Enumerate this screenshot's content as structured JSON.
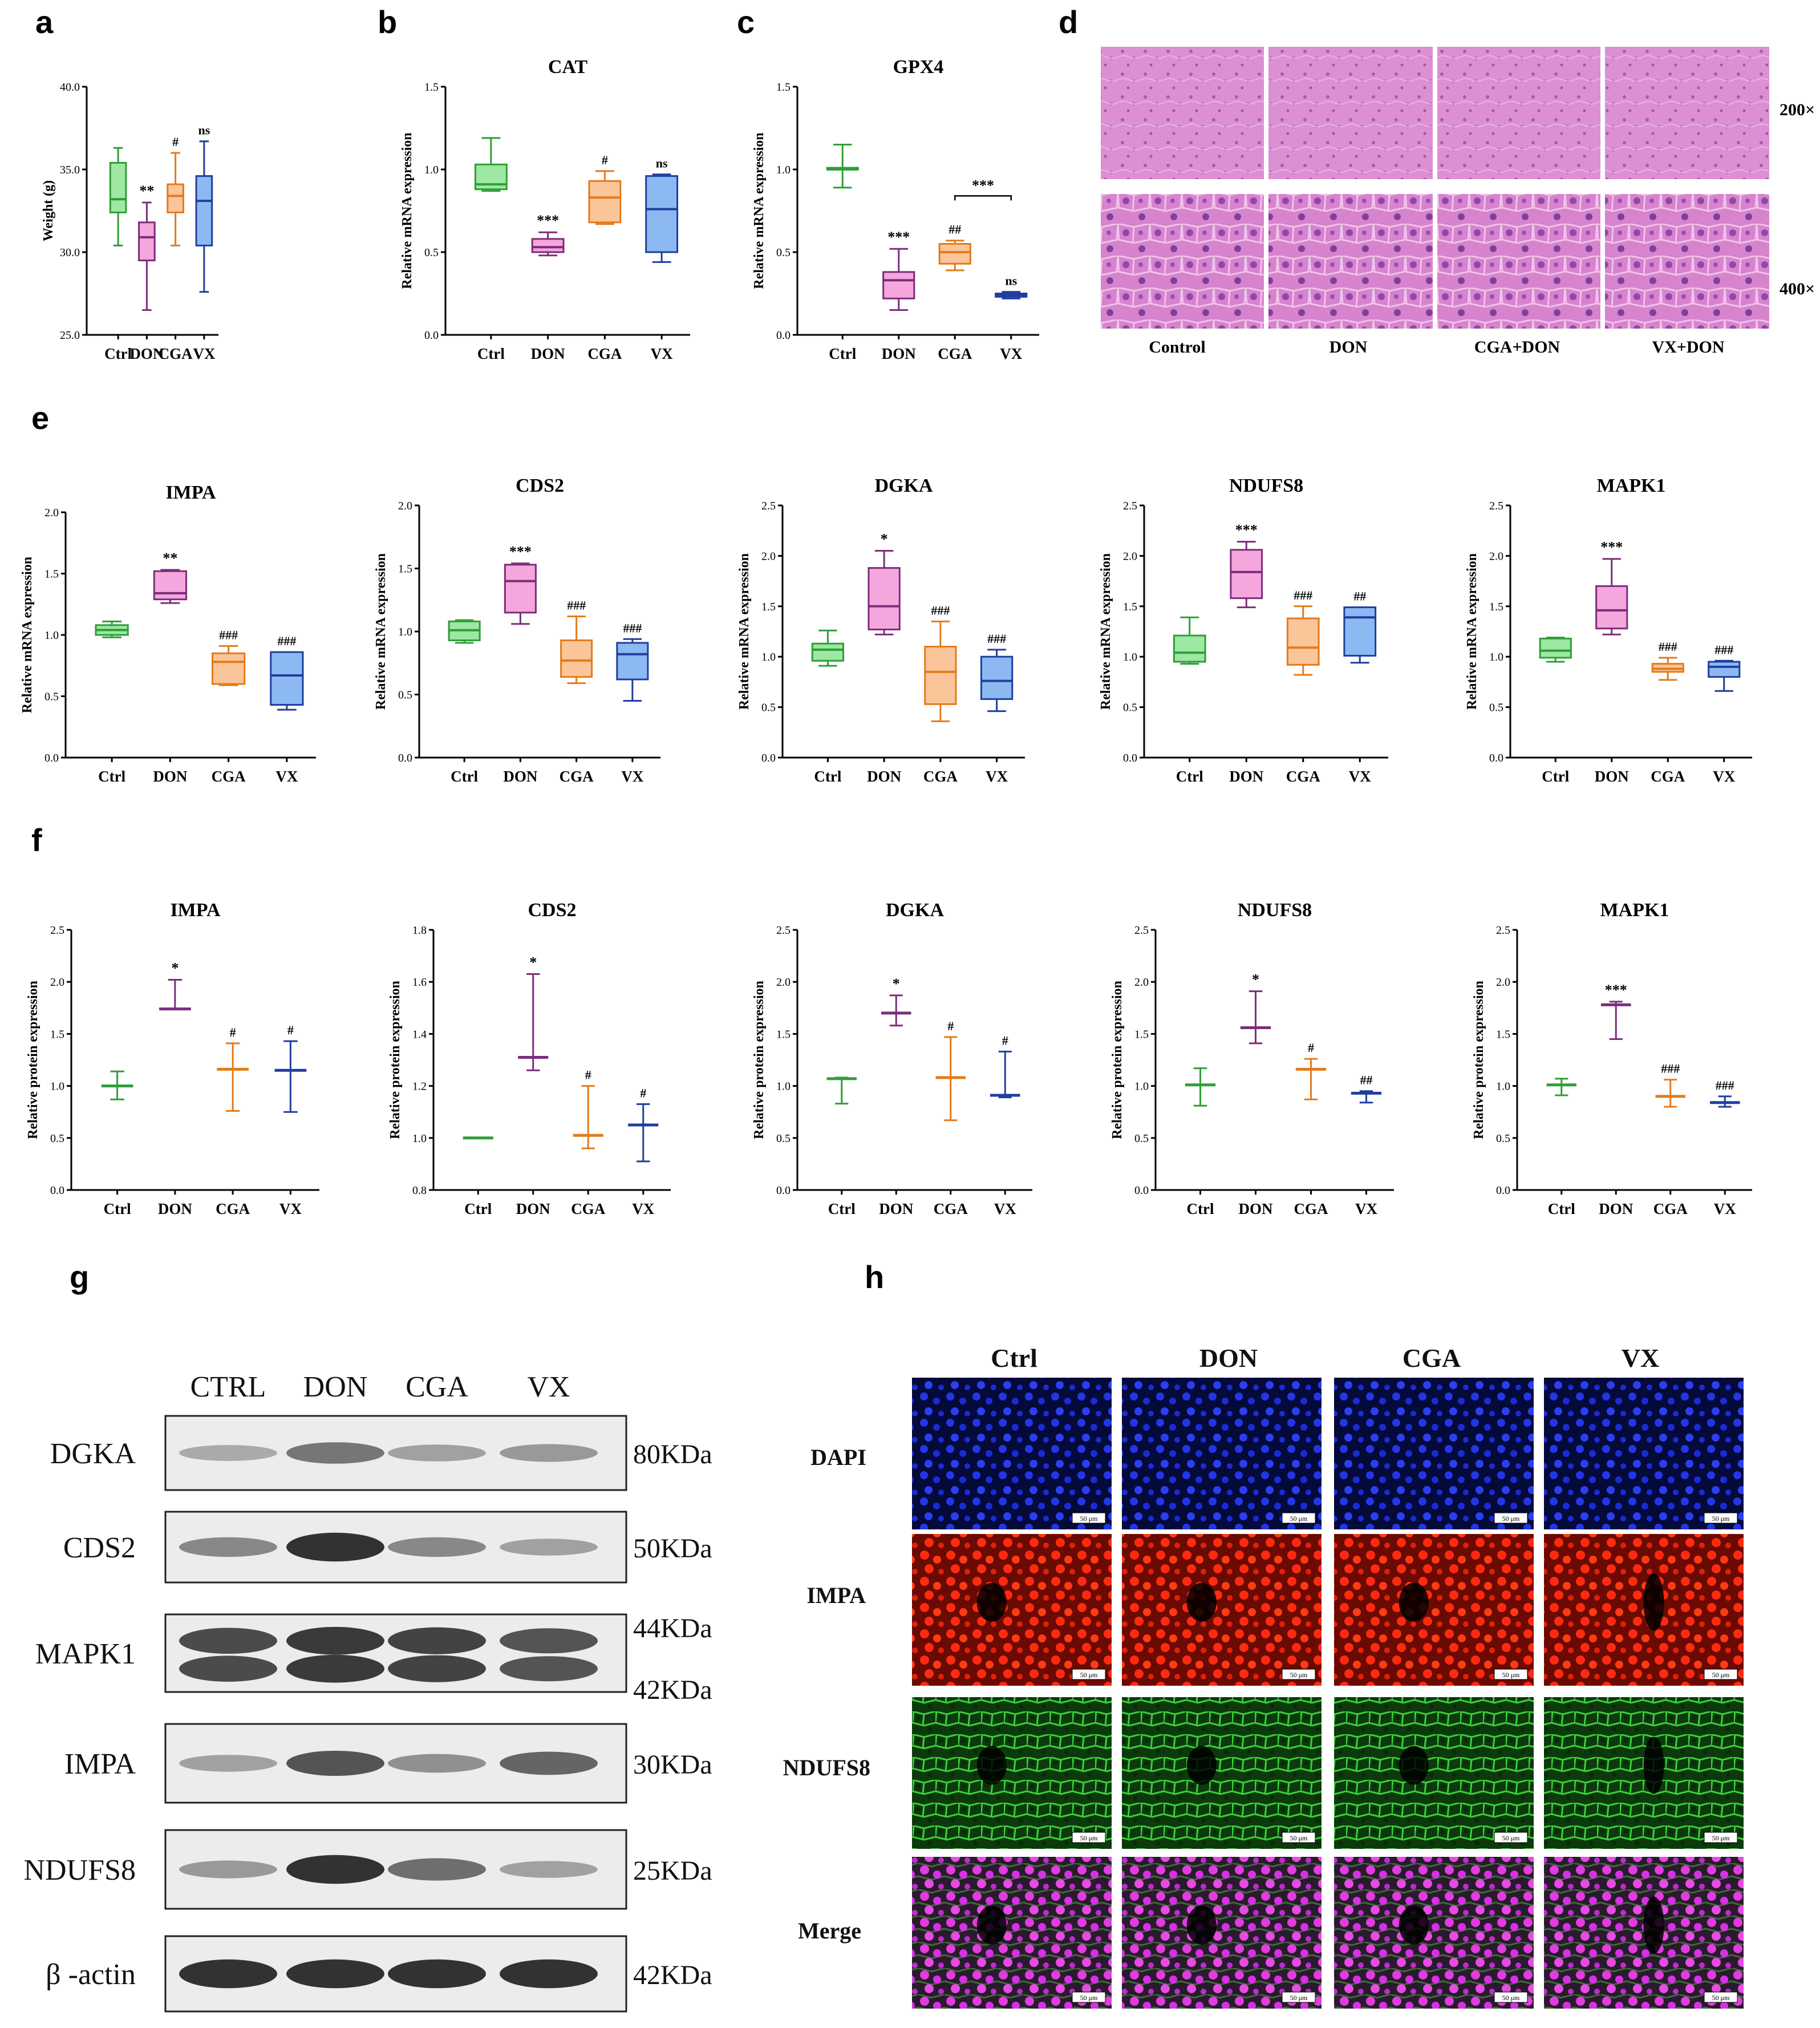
{
  "colors": {
    "Ctrl": {
      "stroke": "#2e9e37",
      "fill": "#9de8a2"
    },
    "DON": {
      "stroke": "#7b2d7a",
      "fill": "#f4a6dd"
    },
    "CGA": {
      "stroke": "#e37b1a",
      "fill": "#fbc59a"
    },
    "VX": {
      "stroke": "#1f3f9e",
      "fill": "#8db9f2"
    }
  },
  "panel_labels": {
    "a": "a",
    "b": "b",
    "c": "c",
    "d": "d",
    "e": "e",
    "f": "f",
    "g": "g",
    "h": "h"
  },
  "chart_data": [
    {
      "id": "a",
      "type": "box",
      "title": "",
      "ylabel": "Weight (g)",
      "ylim": [
        25,
        40
      ],
      "yticks": [
        25,
        30,
        35,
        40
      ],
      "categories": [
        "Ctrl",
        "DON",
        "CGA",
        "VX"
      ],
      "boxes": [
        {
          "min": 30.4,
          "q1": 32.4,
          "median": 33.2,
          "q3": 35.4,
          "max": 36.3,
          "sig": ""
        },
        {
          "min": 26.5,
          "q1": 29.5,
          "median": 30.9,
          "q3": 31.8,
          "max": 33.0,
          "sig": "**"
        },
        {
          "min": 30.4,
          "q1": 32.4,
          "median": 33.4,
          "q3": 34.1,
          "max": 36.0,
          "sig": "#"
        },
        {
          "min": 27.6,
          "q1": 30.4,
          "median": 33.1,
          "q3": 34.6,
          "max": 36.7,
          "sig": "ns"
        }
      ]
    },
    {
      "id": "b",
      "type": "box",
      "title": "CAT",
      "ylabel": "Relative mRNA expression",
      "ylim": [
        0,
        1.5
      ],
      "yticks": [
        0.0,
        0.5,
        1.0,
        1.5
      ],
      "categories": [
        "Ctrl",
        "DON",
        "CGA",
        "VX"
      ],
      "boxes": [
        {
          "min": 0.87,
          "q1": 0.88,
          "median": 0.91,
          "q3": 1.03,
          "max": 1.19,
          "sig": ""
        },
        {
          "min": 0.48,
          "q1": 0.5,
          "median": 0.53,
          "q3": 0.58,
          "max": 0.62,
          "sig": "***"
        },
        {
          "min": 0.67,
          "q1": 0.68,
          "median": 0.83,
          "q3": 0.93,
          "max": 0.99,
          "sig": "#"
        },
        {
          "min": 0.44,
          "q1": 0.5,
          "median": 0.76,
          "q3": 0.96,
          "max": 0.97,
          "sig": "ns"
        }
      ]
    },
    {
      "id": "c",
      "type": "box",
      "title": "GPX4",
      "ylabel": "Relative mRNA expression",
      "ylim": [
        0,
        1.5
      ],
      "yticks": [
        0.0,
        0.5,
        1.0,
        1.5
      ],
      "categories": [
        "Ctrl",
        "DON",
        "CGA",
        "VX"
      ],
      "boxes": [
        {
          "min": 0.89,
          "q1": 1.0,
          "median": 1.0,
          "q3": 1.01,
          "max": 1.15,
          "sig": ""
        },
        {
          "min": 0.15,
          "q1": 0.22,
          "median": 0.33,
          "q3": 0.38,
          "max": 0.52,
          "sig": "***"
        },
        {
          "min": 0.39,
          "q1": 0.43,
          "median": 0.5,
          "q3": 0.55,
          "max": 0.57,
          "sig": "##"
        },
        {
          "min": 0.22,
          "q1": 0.23,
          "median": 0.24,
          "q3": 0.25,
          "max": 0.26,
          "sig": "ns"
        }
      ],
      "bracket": {
        "from": 2,
        "to": 3,
        "y": 0.84,
        "label": "***"
      }
    },
    {
      "id": "e1",
      "type": "box",
      "title": "IMPA",
      "ylabel": "Relative mRNA expression",
      "ylim": [
        0,
        2.0
      ],
      "yticks": [
        0.0,
        0.5,
        1.0,
        1.5,
        2.0
      ],
      "categories": [
        "Ctrl",
        "DON",
        "CGA",
        "VX"
      ],
      "boxes": [
        {
          "min": 0.98,
          "q1": 1.0,
          "median": 1.04,
          "q3": 1.08,
          "max": 1.11,
          "sig": ""
        },
        {
          "min": 1.26,
          "q1": 1.29,
          "median": 1.34,
          "q3": 1.52,
          "max": 1.53,
          "sig": "**"
        },
        {
          "min": 0.59,
          "q1": 0.6,
          "median": 0.78,
          "q3": 0.85,
          "max": 0.91,
          "sig": "###"
        },
        {
          "min": 0.39,
          "q1": 0.43,
          "median": 0.67,
          "q3": 0.86,
          "max": 0.86,
          "sig": "###"
        }
      ]
    },
    {
      "id": "e2",
      "type": "box",
      "title": "CDS2",
      "ylabel": "Relative mRNA expression",
      "ylim": [
        0,
        2.0
      ],
      "yticks": [
        0.0,
        0.5,
        1.0,
        1.5,
        2.0
      ],
      "categories": [
        "Ctrl",
        "DON",
        "CGA",
        "VX"
      ],
      "boxes": [
        {
          "min": 0.91,
          "q1": 0.93,
          "median": 1.01,
          "q3": 1.08,
          "max": 1.09,
          "sig": ""
        },
        {
          "min": 1.06,
          "q1": 1.15,
          "median": 1.4,
          "q3": 1.53,
          "max": 1.54,
          "sig": "***"
        },
        {
          "min": 0.59,
          "q1": 0.64,
          "median": 0.77,
          "q3": 0.93,
          "max": 1.12,
          "sig": "###"
        },
        {
          "min": 0.45,
          "q1": 0.62,
          "median": 0.82,
          "q3": 0.91,
          "max": 0.94,
          "sig": "###"
        }
      ]
    },
    {
      "id": "e3",
      "type": "box",
      "title": "DGKA",
      "ylabel": "Relative mRNA expression",
      "ylim": [
        0,
        2.5
      ],
      "yticks": [
        0.0,
        0.5,
        1.0,
        1.5,
        2.0,
        2.5
      ],
      "categories": [
        "Ctrl",
        "DON",
        "CGA",
        "VX"
      ],
      "boxes": [
        {
          "min": 0.91,
          "q1": 0.96,
          "median": 1.07,
          "q3": 1.13,
          "max": 1.26,
          "sig": ""
        },
        {
          "min": 1.22,
          "q1": 1.27,
          "median": 1.5,
          "q3": 1.88,
          "max": 2.05,
          "sig": "*"
        },
        {
          "min": 0.36,
          "q1": 0.53,
          "median": 0.85,
          "q3": 1.1,
          "max": 1.35,
          "sig": "###"
        },
        {
          "min": 0.46,
          "q1": 0.58,
          "median": 0.76,
          "q3": 1.0,
          "max": 1.07,
          "sig": "###"
        }
      ]
    },
    {
      "id": "e4",
      "type": "box",
      "title": "NDUFS8",
      "ylabel": "Relative mRNA expression",
      "ylim": [
        0,
        2.5
      ],
      "yticks": [
        0.0,
        0.5,
        1.0,
        1.5,
        2.0,
        2.5
      ],
      "categories": [
        "Ctrl",
        "DON",
        "CGA",
        "VX"
      ],
      "boxes": [
        {
          "min": 0.93,
          "q1": 0.95,
          "median": 1.04,
          "q3": 1.21,
          "max": 1.39,
          "sig": ""
        },
        {
          "min": 1.49,
          "q1": 1.58,
          "median": 1.84,
          "q3": 2.06,
          "max": 2.14,
          "sig": "***"
        },
        {
          "min": 0.82,
          "q1": 0.92,
          "median": 1.09,
          "q3": 1.38,
          "max": 1.5,
          "sig": "###"
        },
        {
          "min": 0.94,
          "q1": 1.01,
          "median": 1.39,
          "q3": 1.49,
          "max": 1.49,
          "sig": "##"
        }
      ]
    },
    {
      "id": "e5",
      "type": "box",
      "title": "MAPK1",
      "ylabel": "Relative mRNA expression",
      "ylim": [
        0,
        2.5
      ],
      "yticks": [
        0.0,
        0.5,
        1.0,
        1.5,
        2.0,
        2.5
      ],
      "categories": [
        "Ctrl",
        "DON",
        "CGA",
        "VX"
      ],
      "boxes": [
        {
          "min": 0.95,
          "q1": 0.99,
          "median": 1.06,
          "q3": 1.18,
          "max": 1.19,
          "sig": ""
        },
        {
          "min": 1.22,
          "q1": 1.28,
          "median": 1.46,
          "q3": 1.7,
          "max": 1.97,
          "sig": "***"
        },
        {
          "min": 0.77,
          "q1": 0.85,
          "median": 0.88,
          "q3": 0.93,
          "max": 0.99,
          "sig": "###"
        },
        {
          "min": 0.66,
          "q1": 0.8,
          "median": 0.9,
          "q3": 0.95,
          "max": 0.96,
          "sig": "###"
        }
      ]
    },
    {
      "id": "f1",
      "type": "errorbar",
      "title": "IMPA",
      "ylabel": "Relative protein expression",
      "ylim": [
        0,
        2.5
      ],
      "yticks": [
        0.0,
        0.5,
        1.0,
        1.5,
        2.0,
        2.5
      ],
      "categories": [
        "Ctrl",
        "DON",
        "CGA",
        "VX"
      ],
      "points": [
        {
          "mean": 1.0,
          "low": 0.87,
          "high": 1.14,
          "sig": ""
        },
        {
          "mean": 1.74,
          "low": 1.74,
          "high": 2.02,
          "sig": "*"
        },
        {
          "mean": 1.16,
          "low": 0.76,
          "high": 1.41,
          "sig": "#"
        },
        {
          "mean": 1.15,
          "low": 0.75,
          "high": 1.43,
          "sig": "#"
        }
      ]
    },
    {
      "id": "f2",
      "type": "errorbar",
      "title": "CDS2",
      "ylabel": "Relative protein expression",
      "ylim": [
        0.8,
        1.8
      ],
      "yticks": [
        0.8,
        1.0,
        1.2,
        1.4,
        1.6,
        1.8
      ],
      "categories": [
        "Ctrl",
        "DON",
        "CGA",
        "VX"
      ],
      "points": [
        {
          "mean": 1.0,
          "low": 1.0,
          "high": 1.0,
          "sig": ""
        },
        {
          "mean": 1.31,
          "low": 1.26,
          "high": 1.63,
          "sig": "*"
        },
        {
          "mean": 1.01,
          "low": 0.96,
          "high": 1.2,
          "sig": "#"
        },
        {
          "mean": 1.05,
          "low": 0.91,
          "high": 1.13,
          "sig": "#"
        }
      ]
    },
    {
      "id": "f3",
      "type": "errorbar",
      "title": "DGKA",
      "ylabel": "Relative protein expression",
      "ylim": [
        0,
        2.5
      ],
      "yticks": [
        0.0,
        0.5,
        1.0,
        1.5,
        2.0,
        2.5
      ],
      "categories": [
        "Ctrl",
        "DON",
        "CGA",
        "VX"
      ],
      "points": [
        {
          "mean": 1.07,
          "low": 0.83,
          "high": 1.08,
          "sig": ""
        },
        {
          "mean": 1.7,
          "low": 1.58,
          "high": 1.87,
          "sig": "*"
        },
        {
          "mean": 1.08,
          "low": 0.67,
          "high": 1.47,
          "sig": "#"
        },
        {
          "mean": 0.91,
          "low": 0.89,
          "high": 1.33,
          "sig": "#"
        }
      ]
    },
    {
      "id": "f4",
      "type": "errorbar",
      "title": "NDUFS8",
      "ylabel": "Relative protein expression",
      "ylim": [
        0,
        2.5
      ],
      "yticks": [
        0.0,
        0.5,
        1.0,
        1.5,
        2.0,
        2.5
      ],
      "categories": [
        "Ctrl",
        "DON",
        "CGA",
        "VX"
      ],
      "points": [
        {
          "mean": 1.01,
          "low": 0.81,
          "high": 1.17,
          "sig": ""
        },
        {
          "mean": 1.56,
          "low": 1.41,
          "high": 1.91,
          "sig": "*"
        },
        {
          "mean": 1.16,
          "low": 0.87,
          "high": 1.26,
          "sig": "#"
        },
        {
          "mean": 0.93,
          "low": 0.84,
          "high": 0.95,
          "sig": "##"
        }
      ]
    },
    {
      "id": "f5",
      "type": "errorbar",
      "title": "MAPK1",
      "ylabel": "Relative protein expression",
      "ylim": [
        0,
        2.5
      ],
      "yticks": [
        0.0,
        0.5,
        1.0,
        1.5,
        2.0,
        2.5
      ],
      "categories": [
        "Ctrl",
        "DON",
        "CGA",
        "VX"
      ],
      "points": [
        {
          "mean": 1.01,
          "low": 0.91,
          "high": 1.07,
          "sig": ""
        },
        {
          "mean": 1.78,
          "low": 1.45,
          "high": 1.81,
          "sig": "***"
        },
        {
          "mean": 0.9,
          "low": 0.8,
          "high": 1.06,
          "sig": "###"
        },
        {
          "mean": 0.84,
          "low": 0.8,
          "high": 0.9,
          "sig": "###"
        }
      ]
    }
  ],
  "histology": {
    "magnifications": [
      "200×",
      "400×"
    ],
    "groups": [
      "Control",
      "DON",
      "CGA+DON",
      "VX+DON"
    ]
  },
  "western_blot": {
    "columns": [
      "CTRL",
      "DON",
      "CGA",
      "VX"
    ],
    "rows": [
      {
        "protein": "DGKA",
        "mw": [
          "80KDa"
        ],
        "intensity": [
          0.25,
          0.55,
          0.3,
          0.35
        ]
      },
      {
        "protein": "CDS2",
        "mw": [
          "50KDa"
        ],
        "intensity": [
          0.45,
          0.95,
          0.45,
          0.3
        ]
      },
      {
        "protein": "MAPK1",
        "mw": [
          "44KDa",
          "42KDa"
        ],
        "intensity": [
          0.8,
          0.9,
          0.85,
          0.75
        ]
      },
      {
        "protein": "IMPA",
        "mw": [
          "30KDa"
        ],
        "intensity": [
          0.3,
          0.75,
          0.4,
          0.65
        ]
      },
      {
        "protein": "NDUFS8",
        "mw": [
          "25KDa"
        ],
        "intensity": [
          0.35,
          0.95,
          0.6,
          0.3
        ]
      },
      {
        "protein": "β -actin",
        "mw": [
          "42KDa"
        ],
        "intensity": [
          0.95,
          0.95,
          0.95,
          0.95
        ]
      }
    ]
  },
  "immunofluorescence": {
    "columns": [
      "Ctrl",
      "DON",
      "CGA",
      "VX"
    ],
    "rows": [
      {
        "label": "DAPI",
        "color": "#1a2bd6",
        "bg": "#040a3a"
      },
      {
        "label": "IMPA",
        "color": "#ff2a10",
        "bg": "#3a0400"
      },
      {
        "label": "NDUFS8",
        "color": "#2ebf2e",
        "bg": "#062806"
      },
      {
        "label": "Merge",
        "color": "#e23ce0",
        "bg": "#2a0830"
      }
    ],
    "scale_bar": "50 μm"
  }
}
